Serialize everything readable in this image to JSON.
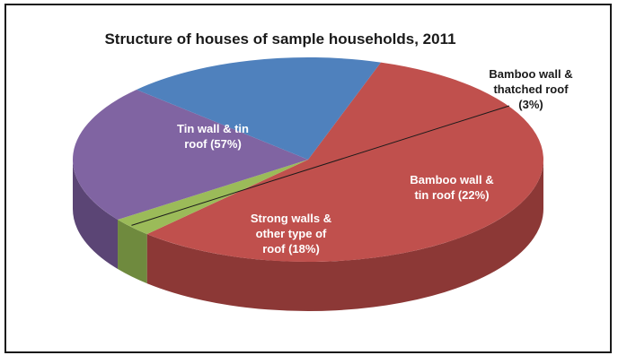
{
  "chart_data": {
    "type": "pie",
    "title": "Structure of houses of sample households, 2011",
    "slices": [
      {
        "label_lines": [
          "Tin wall & tin",
          "roof  (57%)"
        ],
        "value": 57,
        "color": "#c0504d",
        "side_color": "#8c3836"
      },
      {
        "label_lines": [
          "Bamboo wall &",
          "thatched roof",
          "(3%)"
        ],
        "value": 3,
        "color": "#9bbb59",
        "side_color": "#6f8a3e"
      },
      {
        "label_lines": [
          "Bamboo wall &",
          "tin roof (22%)"
        ],
        "value": 22,
        "color": "#8064a2",
        "side_color": "#5b4575"
      },
      {
        "label_lines": [
          "Strong walls &",
          "other type of",
          "roof (18%)"
        ],
        "value": 18,
        "color": "#4f81bd",
        "side_color": "#385d8a"
      }
    ]
  }
}
